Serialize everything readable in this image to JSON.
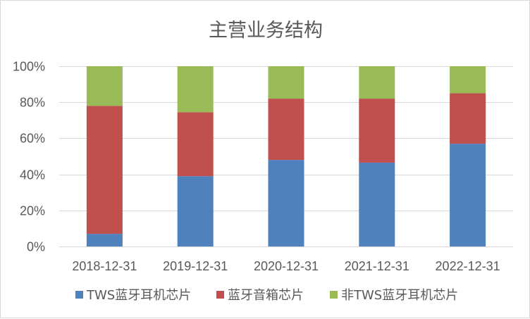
{
  "chart_data": {
    "type": "bar",
    "stacked": true,
    "percent_stacked": true,
    "title": "主营业务结构",
    "categories": [
      "2018-12-31",
      "2019-12-31",
      "2020-12-31",
      "2021-12-31",
      "2022-12-31"
    ],
    "series": [
      {
        "name": "TWS蓝牙耳机芯片",
        "color": "#4f81bd",
        "values": [
          7,
          39,
          48,
          46.5,
          57
        ]
      },
      {
        "name": "蓝牙音箱芯片",
        "color": "#c0504d",
        "values": [
          71,
          35.5,
          34,
          35.5,
          28
        ]
      },
      {
        "name": "非TWS蓝牙耳机芯片",
        "color": "#9bbb59",
        "values": [
          22,
          25.5,
          18,
          18,
          15
        ]
      }
    ],
    "y_ticks": [
      "0%",
      "20%",
      "40%",
      "60%",
      "80%",
      "100%"
    ],
    "ylim": [
      0,
      100
    ],
    "grid": true,
    "gridline_color": "#d9d9d9",
    "legend_position": "bottom"
  }
}
